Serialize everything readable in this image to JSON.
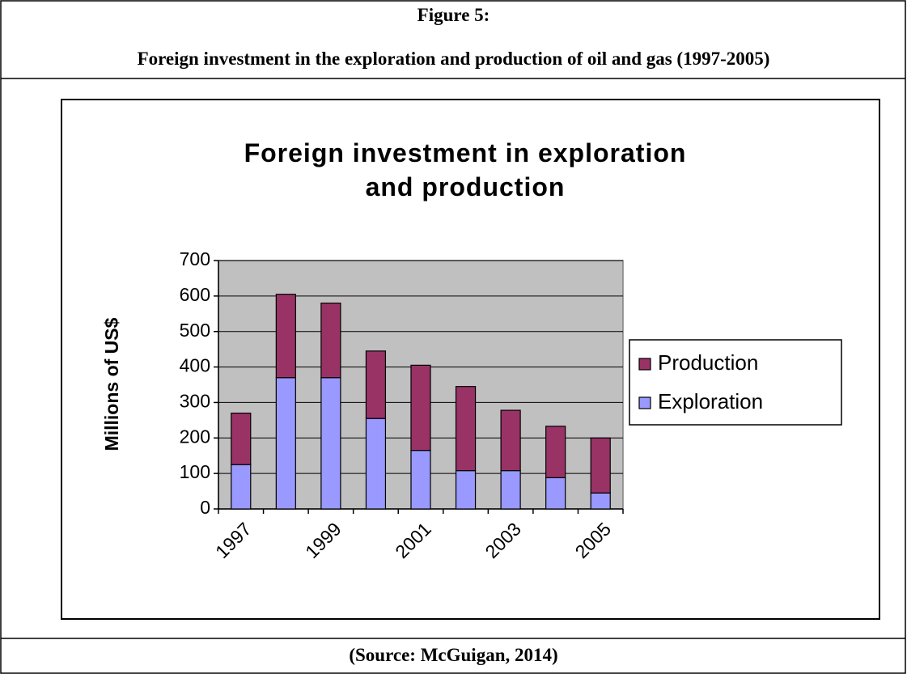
{
  "figure_label": "Figure 5:",
  "caption": "Foreign investment in the exploration and production of oil and gas (1997-2005)",
  "source": "(Source: McGuigan, 2014)",
  "chart_data": {
    "type": "stacked_bar",
    "title": "Foreign investment in exploration and production",
    "y_label": "Millions of US$",
    "categories": [
      "1997",
      null,
      "1999",
      null,
      "2001",
      null,
      "2003",
      null,
      "2005"
    ],
    "series": [
      {
        "name": "Exploration",
        "color": "#9999ff",
        "values": [
          125,
          370,
          370,
          255,
          165,
          108,
          108,
          88,
          45
        ]
      },
      {
        "name": "Production",
        "color": "#993366",
        "values": [
          145,
          235,
          210,
          190,
          240,
          237,
          170,
          145,
          155
        ]
      }
    ],
    "ylim": [
      0,
      700
    ],
    "yticks": [
      0,
      100,
      200,
      300,
      400,
      500,
      600,
      700
    ],
    "grid": true,
    "legend": "right",
    "plot_background": "#c0c0c0"
  }
}
